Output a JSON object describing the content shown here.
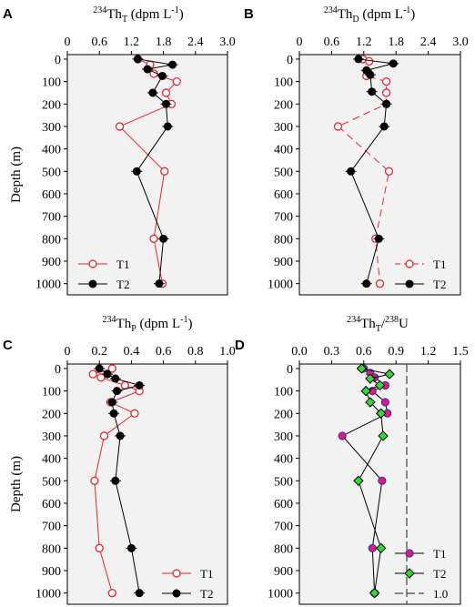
{
  "chart_data": [
    {
      "type": "line",
      "panel": "A",
      "title_main": "234",
      "title_base": "Th",
      "title_sub": "T",
      "title_unit": " (dpm L",
      "title_sup": "-1",
      "title_close": ")",
      "ylabel": "Depth (m)",
      "xlim": [
        0,
        3.0
      ],
      "ylim": [
        1050,
        -20
      ],
      "xticks": [
        "0",
        "0.6",
        "1.2",
        "1.8",
        "2.4",
        "3.0"
      ],
      "xtick_values": [
        0,
        0.6,
        1.2,
        1.8,
        2.4,
        3.0
      ],
      "yticks": [
        "0",
        "100",
        "200",
        "300",
        "400",
        "500",
        "600",
        "700",
        "800",
        "900",
        "1000"
      ],
      "ytick_values": [
        0,
        100,
        200,
        300,
        400,
        500,
        600,
        700,
        800,
        900,
        1000
      ],
      "legend_position": "bottom-left",
      "series": [
        {
          "name": "T1",
          "color": "#e8262b",
          "marker": "open-circle",
          "dash": "solid",
          "x": [
            1.32,
            1.55,
            1.62,
            2.05,
            1.85,
            1.95,
            0.98,
            1.82,
            1.62,
            1.78
          ],
          "y": [
            0,
            25,
            65,
            100,
            150,
            200,
            300,
            500,
            800,
            1000
          ]
        },
        {
          "name": "T2",
          "color": "#000000",
          "marker": "filled-circle",
          "dash": "solid",
          "x": [
            1.32,
            1.97,
            1.5,
            1.78,
            1.6,
            1.85,
            1.88,
            1.3,
            1.8,
            1.72
          ],
          "y": [
            0,
            25,
            45,
            75,
            150,
            200,
            300,
            500,
            800,
            1000
          ]
        }
      ]
    },
    {
      "type": "line",
      "panel": "B",
      "title_main": "234",
      "title_base": "Th",
      "title_sub": "D",
      "title_unit": " (dpm L",
      "title_sup": "-1",
      "title_close": ")",
      "ylabel": "",
      "xlim": [
        0,
        3.0
      ],
      "ylim": [
        1050,
        -20
      ],
      "xticks": [
        "0",
        "0.6",
        "1.2",
        "1.8",
        "2.4",
        "3.0"
      ],
      "xtick_values": [
        0,
        0.6,
        1.2,
        1.8,
        2.4,
        3.0
      ],
      "yticks": [
        "0",
        "100",
        "200",
        "300",
        "400",
        "500",
        "600",
        "700",
        "800",
        "900",
        "1000"
      ],
      "ytick_values": [
        0,
        100,
        200,
        300,
        400,
        500,
        600,
        700,
        800,
        900,
        1000
      ],
      "legend_position": "bottom-right",
      "series": [
        {
          "name": "T1",
          "color": "#e8262b",
          "marker": "open-circle",
          "dash": "dashed",
          "x": [
            1.18,
            1.3,
            1.25,
            1.62,
            1.62,
            1.62,
            0.72,
            1.67,
            1.42,
            1.5
          ],
          "y": [
            0,
            10,
            75,
            100,
            150,
            200,
            300,
            500,
            800,
            1000
          ]
        },
        {
          "name": "T2",
          "color": "#000000",
          "marker": "filled-circle",
          "dash": "solid",
          "x": [
            1.1,
            1.75,
            1.25,
            1.32,
            1.35,
            1.62,
            1.58,
            0.96,
            1.48,
            1.25
          ],
          "y": [
            0,
            20,
            50,
            70,
            145,
            200,
            300,
            500,
            800,
            1000
          ]
        }
      ]
    },
    {
      "type": "line",
      "panel": "C",
      "title_main": "234",
      "title_base": "Th",
      "title_sub": "P",
      "title_unit": " (dpm L",
      "title_sup": "-1",
      "title_close": ")",
      "ylabel": "Depth (m)",
      "xlim": [
        0,
        1.0
      ],
      "ylim": [
        1050,
        -20
      ],
      "xticks": [
        "0",
        "0.2",
        "0.4",
        "0.6",
        "0.8",
        "1.0"
      ],
      "xtick_values": [
        0,
        0.2,
        0.4,
        0.6,
        0.8,
        1.0
      ],
      "yticks": [
        "0",
        "100",
        "200",
        "300",
        "400",
        "500",
        "600",
        "700",
        "800",
        "900",
        "1000"
      ],
      "ytick_values": [
        0,
        100,
        200,
        300,
        400,
        500,
        600,
        700,
        800,
        900,
        1000
      ],
      "legend_position": "bottom-right",
      "series": [
        {
          "name": "T1",
          "color": "#e8262b",
          "marker": "open-circle",
          "dash": "solid",
          "x": [
            0.28,
            0.16,
            0.21,
            0.36,
            0.45,
            0.27,
            0.42,
            0.23,
            0.17,
            0.2,
            0.28
          ],
          "y": [
            0,
            25,
            40,
            75,
            100,
            150,
            200,
            300,
            500,
            800,
            1000
          ]
        },
        {
          "name": "T2",
          "color": "#000000",
          "marker": "filled-circle",
          "dash": "solid",
          "x": [
            0.2,
            0.25,
            0.3,
            0.45,
            0.31,
            0.28,
            0.29,
            0.33,
            0.3,
            0.4,
            0.45
          ],
          "y": [
            0,
            25,
            45,
            75,
            100,
            150,
            200,
            300,
            500,
            800,
            1000
          ]
        }
      ]
    },
    {
      "type": "line",
      "panel": "D",
      "title_parts": [
        "234",
        "Th",
        "T",
        "/",
        "238",
        "U"
      ],
      "ylabel": "",
      "xlim": [
        0,
        1.5
      ],
      "ylim": [
        1050,
        -20
      ],
      "xticks": [
        "0.0",
        "0.3",
        "0.6",
        "0.9",
        "1.2",
        "1.5"
      ],
      "xtick_values": [
        0,
        0.3,
        0.6,
        0.9,
        1.2,
        1.5
      ],
      "yticks": [
        "0",
        "100",
        "200",
        "300",
        "400",
        "500",
        "600",
        "700",
        "800",
        "900",
        "1000"
      ],
      "ytick_values": [
        0,
        100,
        200,
        300,
        400,
        500,
        600,
        700,
        800,
        900,
        1000
      ],
      "legend_position": "bottom-right",
      "reference_line": {
        "name": "1.0",
        "x": 1.0,
        "color": "#444444"
      },
      "series": [
        {
          "name": "T1",
          "color": "#3a3a8f",
          "fill": "#e0188a",
          "marker": "circle",
          "dash": "solid",
          "x": [
            0.6,
            0.66,
            0.7,
            0.8,
            0.68,
            0.8,
            0.82,
            0.4,
            0.77,
            0.68,
            0.7
          ],
          "y": [
            0,
            20,
            40,
            75,
            100,
            150,
            200,
            300,
            500,
            800,
            1000
          ]
        },
        {
          "name": "T2",
          "color": "#000000",
          "fill": "#37d637",
          "marker": "diamond",
          "dash": "solid",
          "x": [
            0.58,
            0.84,
            0.66,
            0.75,
            0.62,
            0.66,
            0.76,
            0.78,
            0.55,
            0.76,
            0.7
          ],
          "y": [
            0,
            25,
            45,
            75,
            100,
            150,
            200,
            300,
            500,
            800,
            1000
          ]
        }
      ]
    }
  ]
}
